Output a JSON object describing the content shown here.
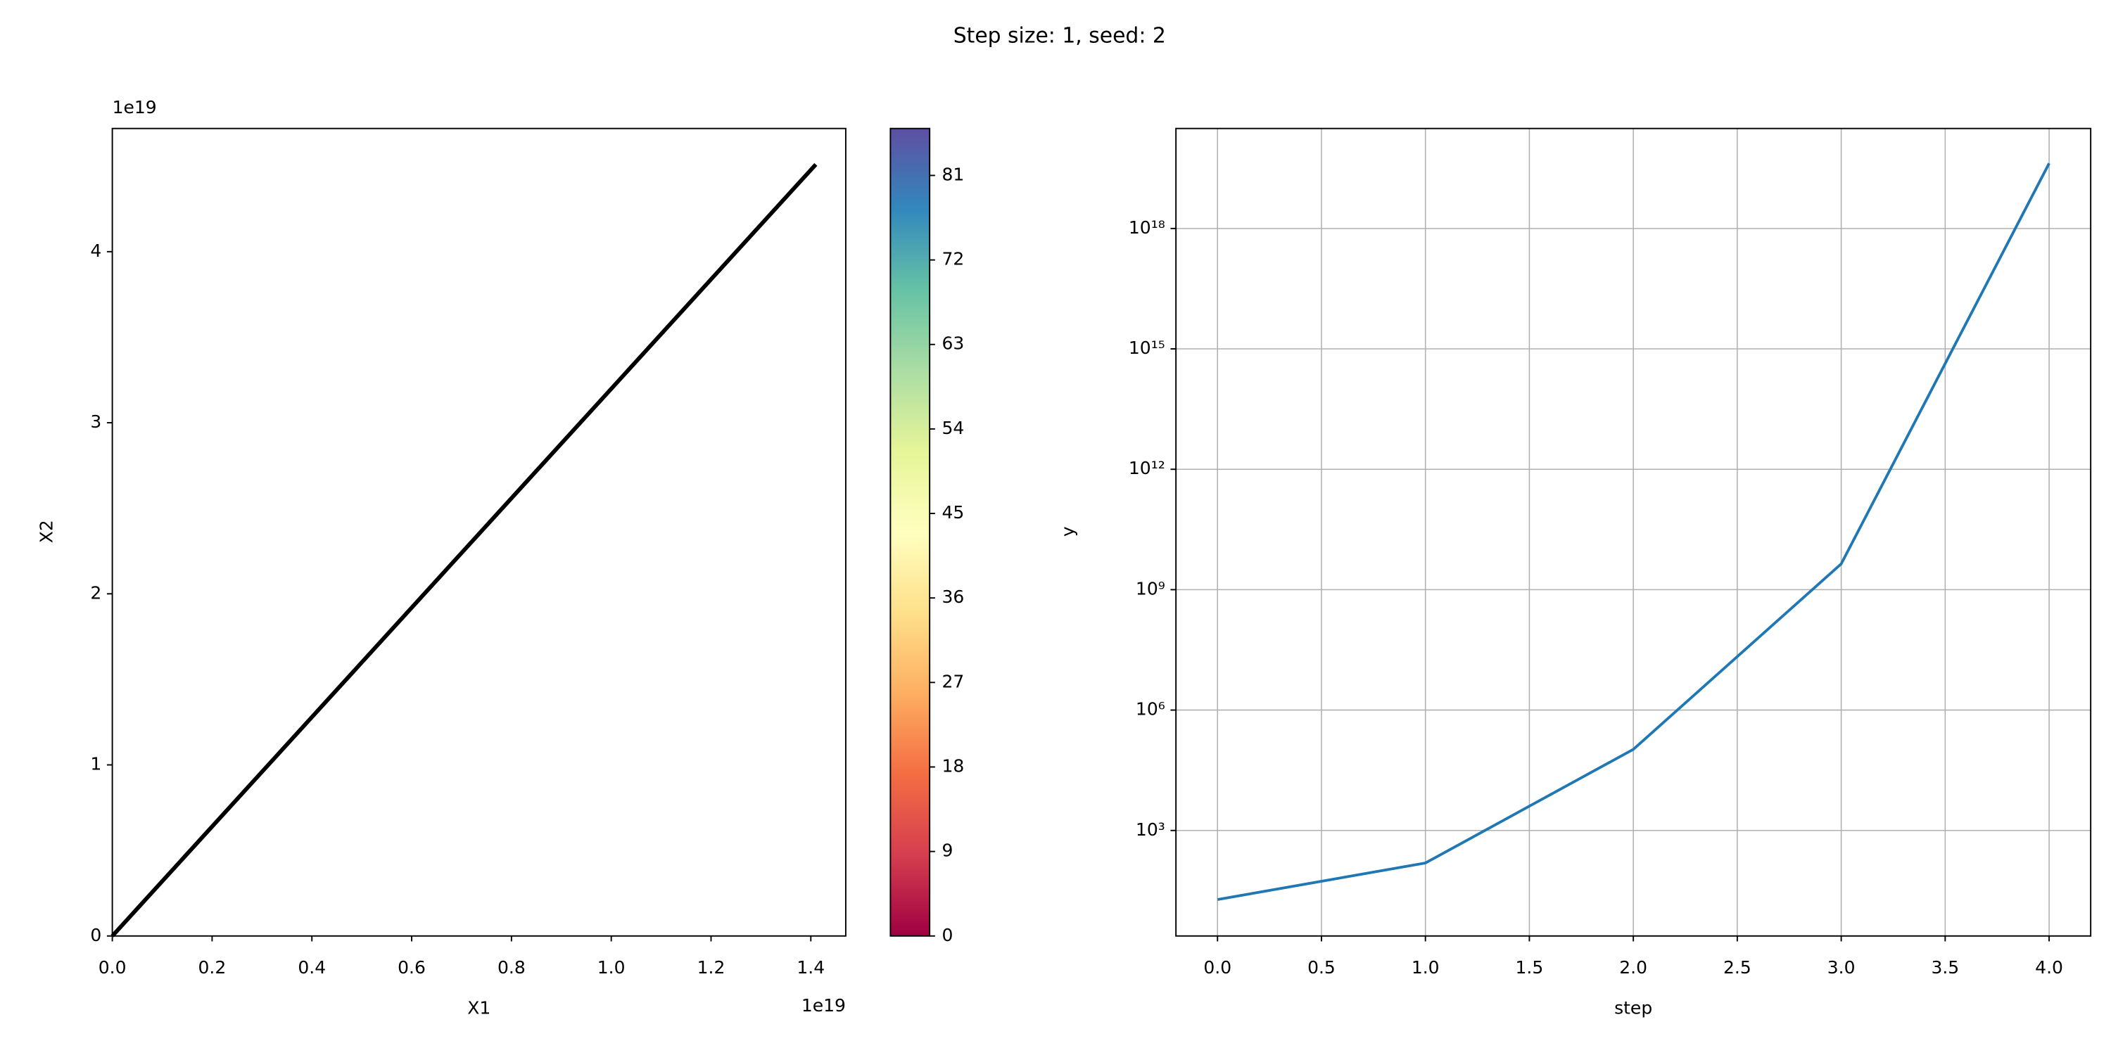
{
  "title": "Step size: 1, seed: 2",
  "chart_data": [
    {
      "type": "line",
      "x": [
        0,
        1.41e+19
      ],
      "values": [
        0,
        4.51e+19
      ],
      "color": "#000000",
      "xlabel": "X1",
      "ylabel": "X2",
      "x_offset_label": "1e19",
      "y_offset_label": "1e19",
      "xlim": [
        0,
        1.47e+19
      ],
      "ylim": [
        0,
        4.72e+19
      ],
      "xticks": [
        {
          "value": 0,
          "label": "0.0"
        },
        {
          "value": 2e+18,
          "label": "0.2"
        },
        {
          "value": 4e+18,
          "label": "0.4"
        },
        {
          "value": 6e+18,
          "label": "0.6"
        },
        {
          "value": 8e+18,
          "label": "0.8"
        },
        {
          "value": 1e+19,
          "label": "1.0"
        },
        {
          "value": 1.2e+19,
          "label": "1.2"
        },
        {
          "value": 1.4e+19,
          "label": "1.4"
        }
      ],
      "yticks": [
        0,
        {
          "value": 1e+19,
          "label": "1"
        },
        {
          "value": 2e+19,
          "label": "2"
        },
        {
          "value": 3e+19,
          "label": "3"
        },
        {
          "value": 4e+19,
          "label": "4"
        }
      ],
      "grid": false
    },
    {
      "type": "colorbar",
      "colormap": [
        "#9e0142",
        "#d53e4f",
        "#f46d43",
        "#fdae61",
        "#fee08b",
        "#ffffbf",
        "#e6f598",
        "#abdda4",
        "#66c2a5",
        "#3288bd",
        "#5e4fa2"
      ],
      "ylim": [
        0,
        86
      ],
      "yticks": [
        0,
        9,
        18,
        27,
        36,
        45,
        54,
        63,
        72,
        81
      ]
    },
    {
      "type": "line",
      "x": [
        0,
        1,
        2,
        3,
        4
      ],
      "values": [
        19,
        155,
        105000,
        4400000000,
        4.2e+19
      ],
      "color": "#1f77b4",
      "xlabel": "step",
      "ylabel": "y",
      "log_y": true,
      "xlim": [
        -0.2,
        4.2
      ],
      "ylim": [
        2.35,
        3.1e+20
      ],
      "xticks": [
        {
          "value": 0,
          "label": "0.0"
        },
        {
          "value": 0.5,
          "label": "0.5"
        },
        {
          "value": 1,
          "label": "1.0"
        },
        {
          "value": 1.5,
          "label": "1.5"
        },
        {
          "value": 2,
          "label": "2.0"
        },
        {
          "value": 2.5,
          "label": "2.5"
        },
        {
          "value": 3,
          "label": "3.0"
        },
        {
          "value": 3.5,
          "label": "3.5"
        },
        {
          "value": 4,
          "label": "4.0"
        }
      ],
      "yticks": [
        {
          "value": 1000,
          "label": "10³"
        },
        {
          "value": 1000000,
          "label": "10⁶"
        },
        {
          "value": 1000000000,
          "label": "10⁹"
        },
        {
          "value": 1000000000000.0,
          "label": "10¹²"
        },
        {
          "value": 1000000000000000.0,
          "label": "10¹⁵"
        },
        {
          "value": 1e+18,
          "label": "10¹⁸"
        }
      ],
      "grid": true
    }
  ]
}
